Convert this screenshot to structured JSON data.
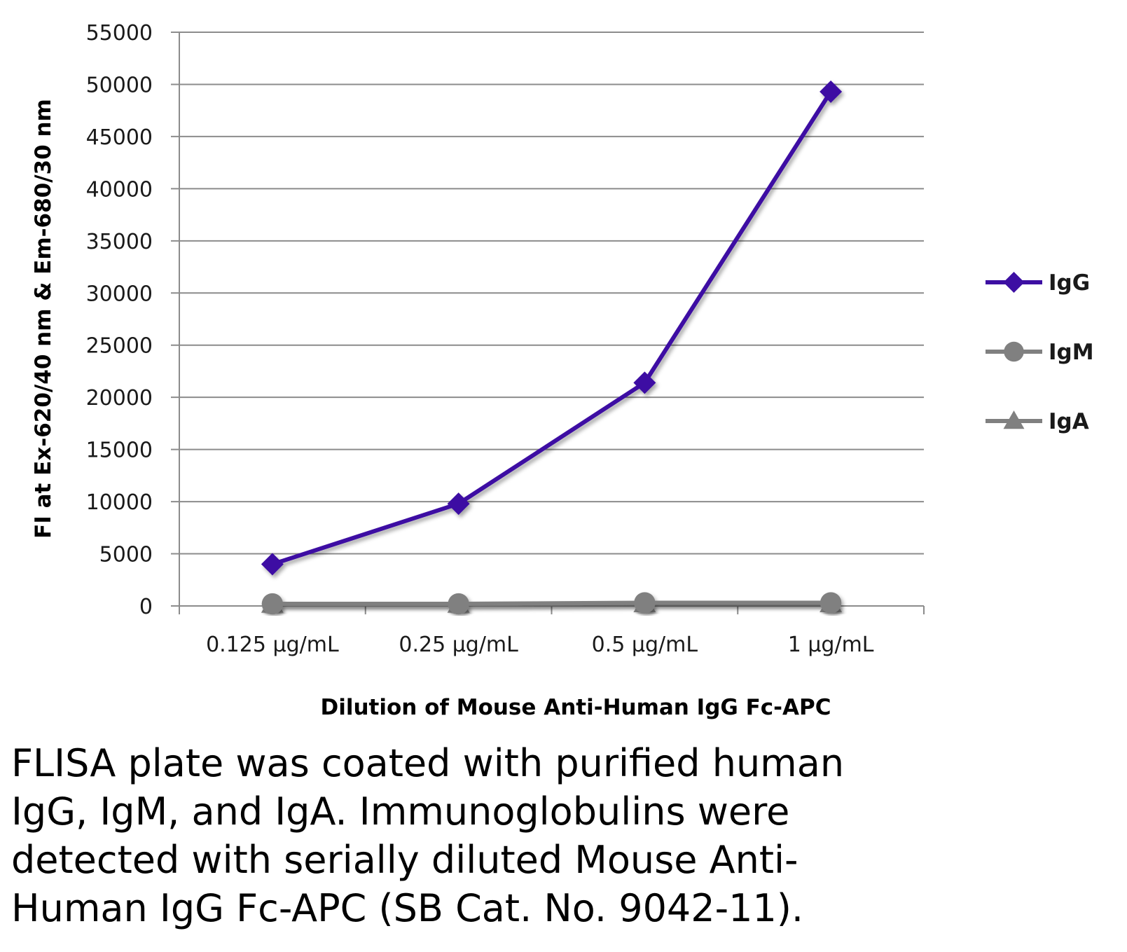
{
  "chart_data": {
    "type": "line",
    "xlabel": "Dilution of Mouse Anti-Human IgG Fc-APC",
    "ylabel": "FI at Ex-620/40 nm & Em-680/30 nm",
    "categories": [
      "0.125 µg/mL",
      "0.25 µg/mL",
      "0.5 µg/mL",
      "1 µg/mL"
    ],
    "ylim": [
      0,
      55000
    ],
    "yticks": [
      0,
      5000,
      10000,
      15000,
      20000,
      25000,
      30000,
      35000,
      40000,
      45000,
      50000,
      55000
    ],
    "grid": true,
    "legend_position": "right",
    "series": [
      {
        "name": "IgG",
        "values": [
          4000,
          9800,
          21400,
          49300
        ],
        "color": "#3d0fa3",
        "marker": "diamond"
      },
      {
        "name": "IgM",
        "values": [
          200,
          200,
          300,
          300
        ],
        "color": "#808080",
        "marker": "circle"
      },
      {
        "name": "IgA",
        "values": [
          150,
          150,
          200,
          200
        ],
        "color": "#808080",
        "marker": "triangle"
      }
    ]
  },
  "caption": "FLISA plate was coated with purified human\nIgG, IgM, and IgA.  Immunoglobulins were\ndetected with serially diluted Mouse Anti-\nHuman IgG Fc-APC (SB Cat. No. 9042-11)."
}
